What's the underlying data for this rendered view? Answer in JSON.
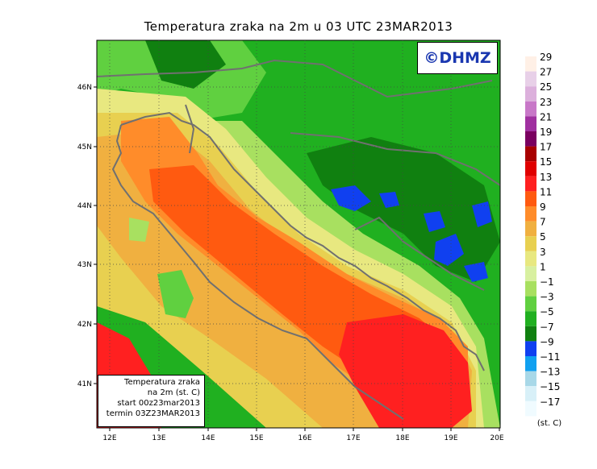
{
  "title": "Temperatura zraka na 2m u 03 UTC 23MAR2013",
  "watermark": "©DHMZ",
  "info_box": {
    "line1": "Temperatura zraka",
    "line2": "na 2m (st. C)",
    "line3": "start 00z23mar2013",
    "line4": "termin 03Z23MAR2013"
  },
  "lat_ticks": [
    "46N",
    "45N",
    "44N",
    "43N",
    "42N",
    "41N"
  ],
  "lon_ticks": [
    "12E",
    "13E",
    "14E",
    "15E",
    "16E",
    "17E",
    "18E",
    "19E",
    "20E"
  ],
  "legend": {
    "unit": "(st. C)",
    "levels": [
      {
        "label": "29",
        "color": "#fff0e6"
      },
      {
        "label": "27",
        "color": "#e8d0e8"
      },
      {
        "label": "25",
        "color": "#dcb0dc"
      },
      {
        "label": "23",
        "color": "#c878c8"
      },
      {
        "label": "21",
        "color": "#a030a0"
      },
      {
        "label": "19",
        "color": "#7a0060"
      },
      {
        "label": "17",
        "color": "#a80000"
      },
      {
        "label": "15",
        "color": "#e00000"
      },
      {
        "label": "13",
        "color": "#ff2020"
      },
      {
        "label": "11",
        "color": "#ff5a10"
      },
      {
        "label": "9",
        "color": "#ff8c2a"
      },
      {
        "label": "7",
        "color": "#f0b040"
      },
      {
        "label": "5",
        "color": "#e8d050"
      },
      {
        "label": "3",
        "color": "#e8e880"
      },
      {
        "label": "1",
        "color": "#d8f0a0"
      },
      {
        "label": "−1",
        "color": "#a8e060"
      },
      {
        "label": "−3",
        "color": "#60d040"
      },
      {
        "label": "−5",
        "color": "#20b020"
      },
      {
        "label": "−7",
        "color": "#108010"
      },
      {
        "label": "−9",
        "color": "#1040f0"
      },
      {
        "label": "−11",
        "color": "#10a0f0"
      },
      {
        "label": "−13",
        "color": "#a8d8e8"
      },
      {
        "label": "−15",
        "color": "#d8f0f8"
      },
      {
        "label": "−17",
        "color": "#f0fbff"
      }
    ]
  }
}
